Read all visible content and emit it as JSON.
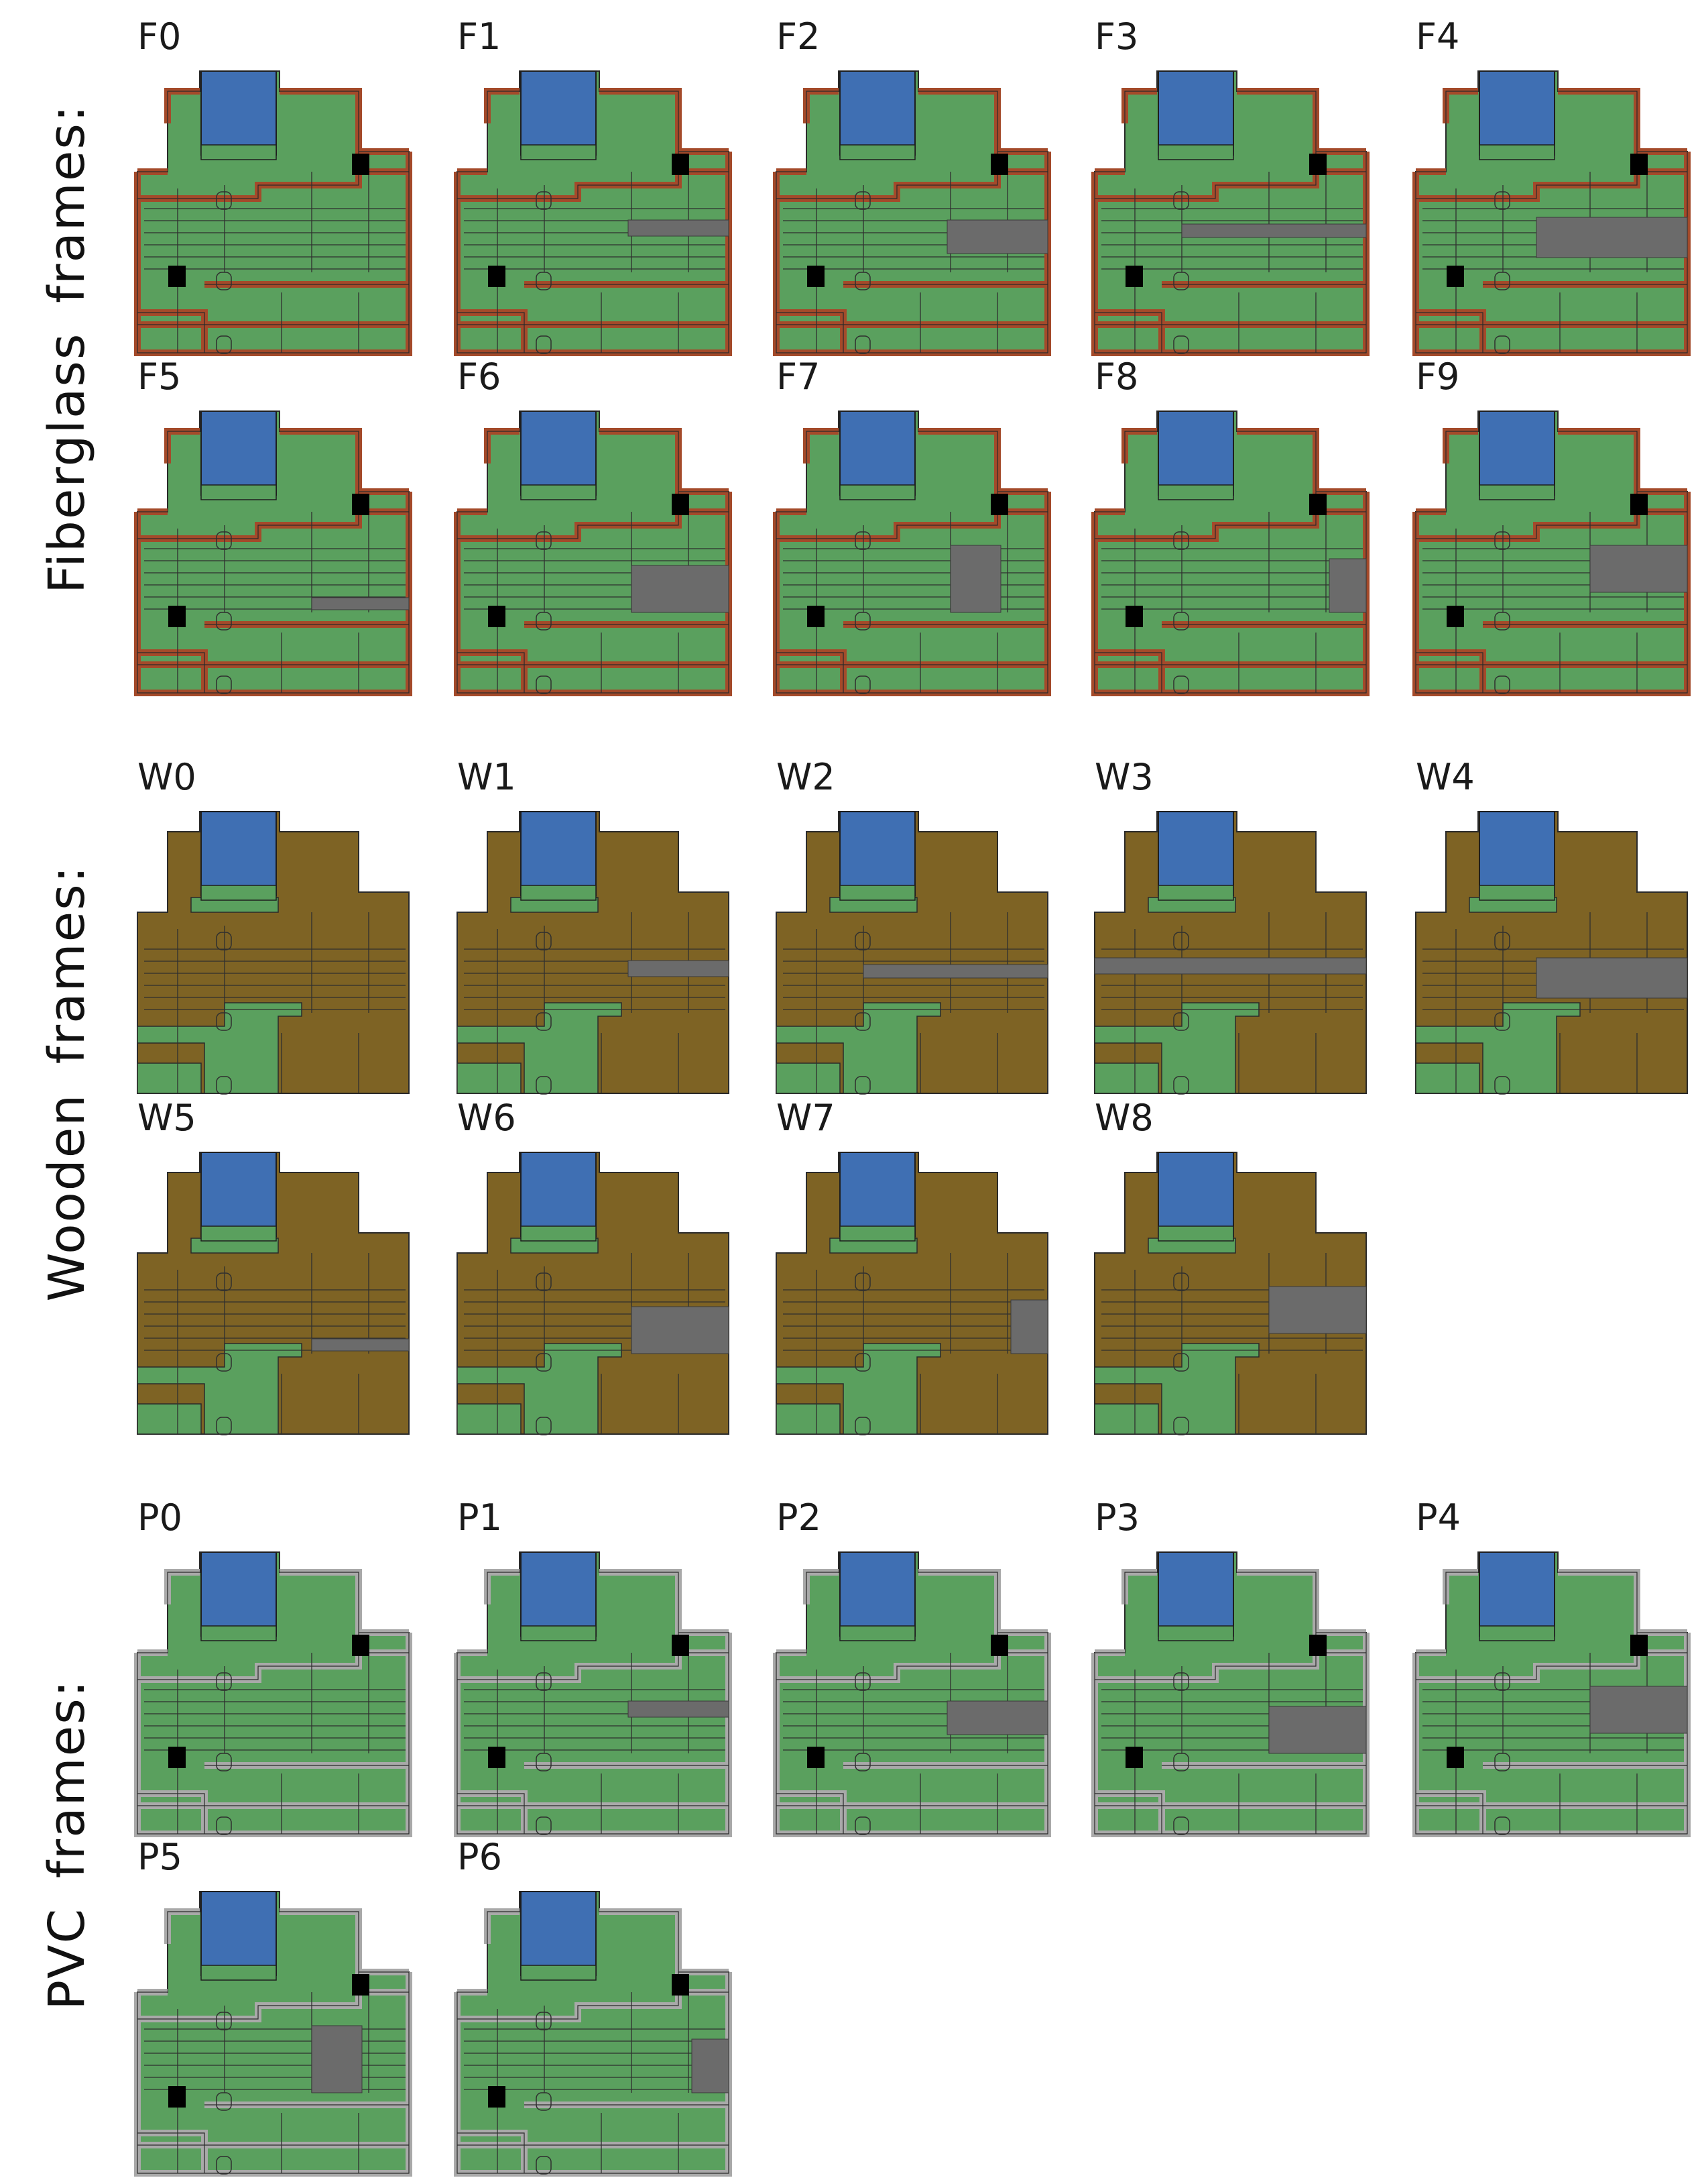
{
  "colors": {
    "glazing": "#3f6fb3",
    "insulation": "#5aa05e",
    "fiberglass_frame": "#a44a2a",
    "wood": "#7e6324",
    "pvc": "#a9a9a9",
    "reinforcement": "#6b6b6b",
    "void": "#000000",
    "line": "#2f2f2f"
  },
  "groups": [
    {
      "id": "fiberglass",
      "label": "Fiberglass frames:",
      "frames": [
        {
          "label": "F0",
          "gray_variant": "none"
        },
        {
          "label": "F1",
          "gray_variant": "mid-right"
        },
        {
          "label": "F2",
          "gray_variant": "mid-right-large"
        },
        {
          "label": "F3",
          "gray_variant": "mid-long"
        },
        {
          "label": "F4",
          "gray_variant": "mid-wide"
        },
        {
          "label": "F5",
          "gray_variant": "lower-right"
        },
        {
          "label": "F6",
          "gray_variant": "lower-right-block"
        },
        {
          "label": "F7",
          "gray_variant": "lower-middle-block"
        },
        {
          "label": "F8",
          "gray_variant": "lower-right-narrow"
        },
        {
          "label": "F9",
          "gray_variant": "lower-right-band"
        }
      ]
    },
    {
      "id": "wooden",
      "label": "Wooden frames:",
      "frames": [
        {
          "label": "W0",
          "gray_variant": "none"
        },
        {
          "label": "W1",
          "gray_variant": "mid-right"
        },
        {
          "label": "W2",
          "gray_variant": "mid-long"
        },
        {
          "label": "W3",
          "gray_variant": "mid-full"
        },
        {
          "label": "W4",
          "gray_variant": "mid-wide"
        },
        {
          "label": "W5",
          "gray_variant": "lower-right"
        },
        {
          "label": "W6",
          "gray_variant": "lower-right-block"
        },
        {
          "label": "W7",
          "gray_variant": "lower-right-narrow"
        },
        {
          "label": "W8",
          "gray_variant": "lower-right-band"
        }
      ]
    },
    {
      "id": "pvc",
      "label": "PVC frames:",
      "frames": [
        {
          "label": "P0",
          "gray_variant": "none"
        },
        {
          "label": "P1",
          "gray_variant": "mid-right"
        },
        {
          "label": "P2",
          "gray_variant": "mid-right-large"
        },
        {
          "label": "P3",
          "gray_variant": "lower-right-block"
        },
        {
          "label": "P4",
          "gray_variant": "lower-right-band"
        },
        {
          "label": "P5",
          "gray_variant": "lower-middle-block"
        },
        {
          "label": "P6",
          "gray_variant": "lower-right-narrow"
        }
      ]
    }
  ]
}
